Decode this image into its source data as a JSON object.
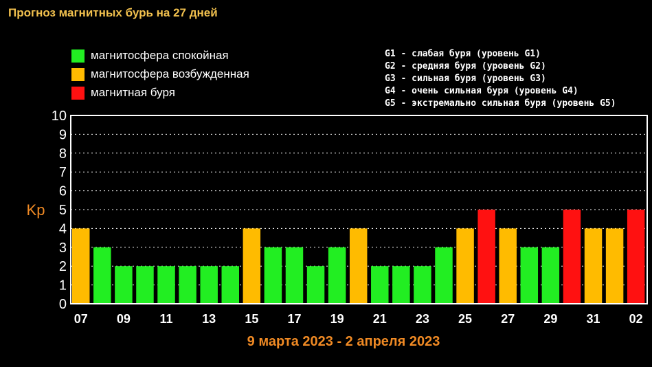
{
  "title": "Прогноз магнитных бурь на 27 дней",
  "legend": [
    {
      "label": "магнитосфера спокойная",
      "color": "#22ee22"
    },
    {
      "label": "магнитосфера возбужденная",
      "color": "#ffbb00"
    },
    {
      "label": "магнитная буря",
      "color": "#ff1111"
    }
  ],
  "gscale": [
    "G1 - слабая буря (уровень G1)",
    "G2 - средняя буря (уровень G2)",
    "G3 - сильная буря (уровень G3)",
    "G4 - очень сильная буря (уровень G4)",
    "G5 - экстремально сильная буря (уровень G5)"
  ],
  "chart_data": {
    "type": "bar",
    "ylabel": "Kp",
    "xlabel": "9 марта 2023 - 2 апреля 2023",
    "ylim": [
      0,
      10
    ],
    "yticks": [
      0,
      1,
      2,
      3,
      4,
      5,
      6,
      7,
      8,
      9,
      10
    ],
    "grid": true,
    "x_tick_labels": [
      "07",
      "09",
      "11",
      "13",
      "15",
      "17",
      "19",
      "21",
      "23",
      "25",
      "27",
      "29",
      "31",
      "02"
    ],
    "values": [
      4,
      3,
      2,
      2,
      2,
      2,
      2,
      2,
      4,
      3,
      3,
      2,
      3,
      4,
      2,
      2,
      2,
      3,
      4,
      5,
      4,
      3,
      3,
      5,
      4,
      4,
      5
    ],
    "bar_colors": [
      "#ffbb00",
      "#22ee22",
      "#22ee22",
      "#22ee22",
      "#22ee22",
      "#22ee22",
      "#22ee22",
      "#22ee22",
      "#ffbb00",
      "#22ee22",
      "#22ee22",
      "#22ee22",
      "#22ee22",
      "#ffbb00",
      "#22ee22",
      "#22ee22",
      "#22ee22",
      "#22ee22",
      "#ffbb00",
      "#ff1111",
      "#ffbb00",
      "#22ee22",
      "#22ee22",
      "#ff1111",
      "#ffbb00",
      "#ffbb00",
      "#ff1111"
    ],
    "grid_color": "#ffffff",
    "frame_color": "#ffffff"
  }
}
